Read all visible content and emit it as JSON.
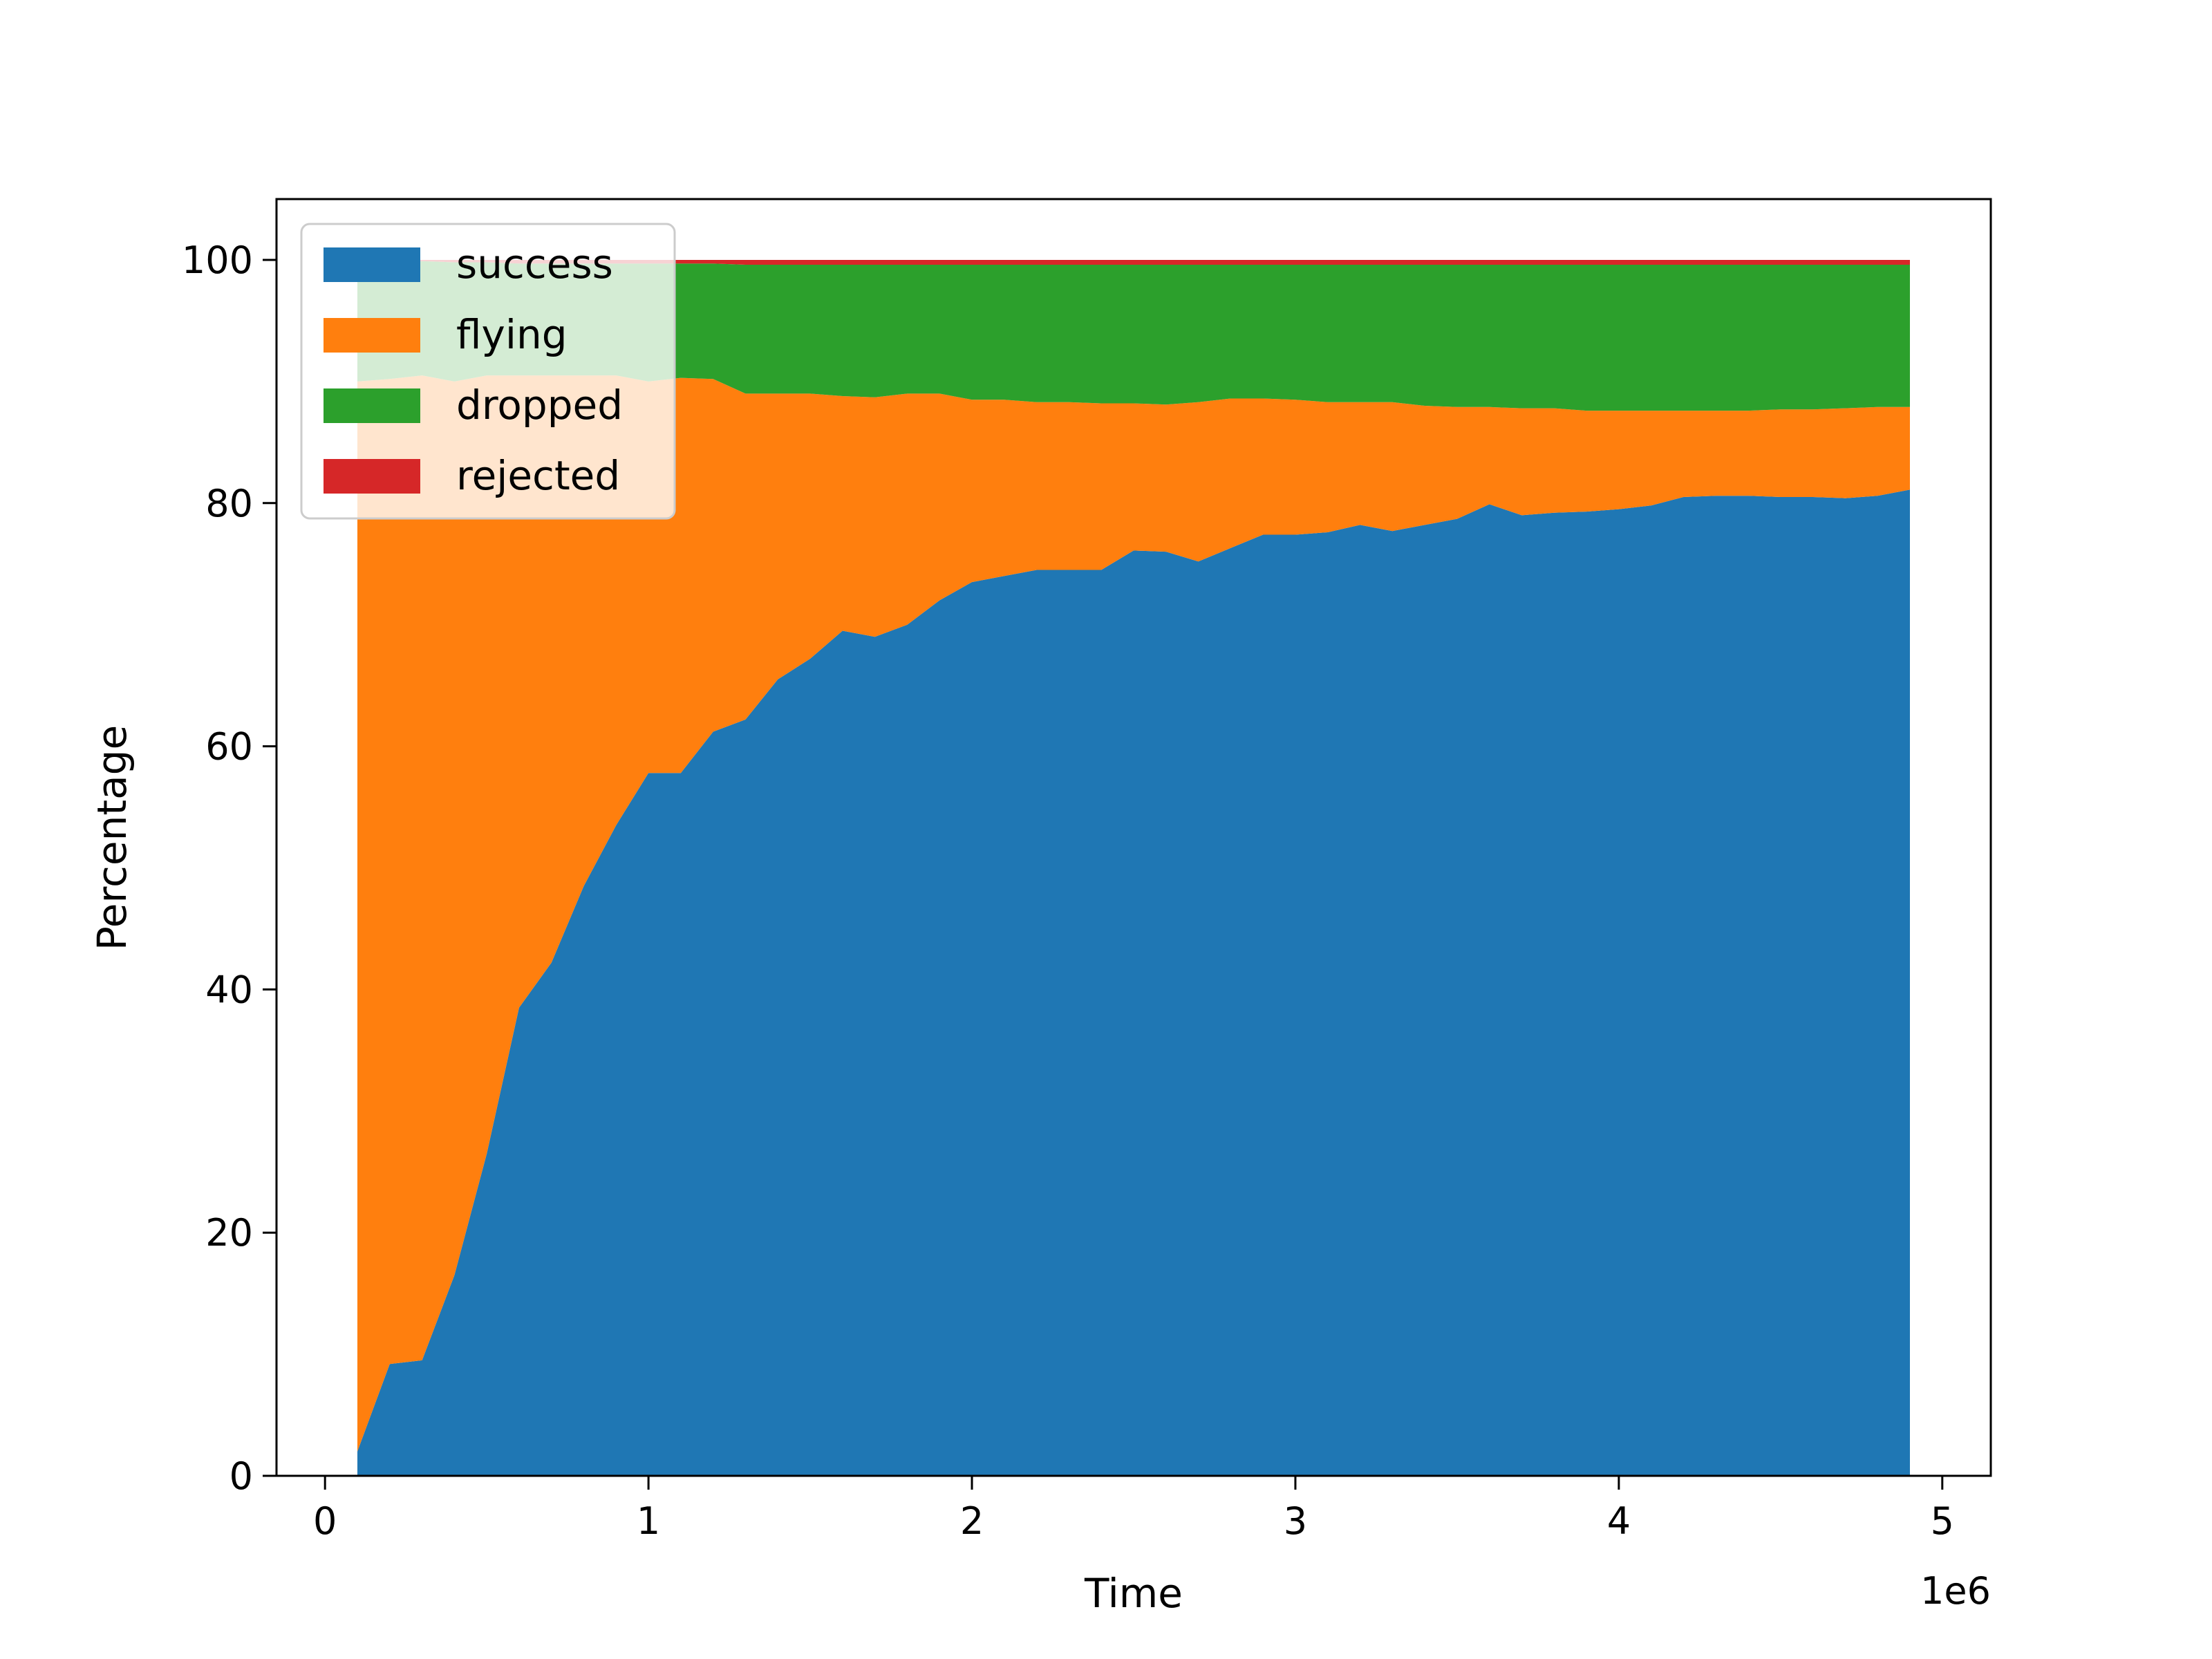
{
  "chart_data": {
    "type": "area",
    "stacked": true,
    "xlabel": "Time",
    "ylabel": "Percentage",
    "x_offset_label": "1e6",
    "xlim": [
      -150000,
      5150000
    ],
    "ylim": [
      0,
      105
    ],
    "xticks": [
      0,
      1,
      2,
      3,
      4,
      5
    ],
    "yticks": [
      0,
      20,
      40,
      60,
      80,
      100
    ],
    "legend_position": "top-left",
    "grid": false,
    "x": [
      100000,
      200000,
      300000,
      400000,
      500000,
      600000,
      700000,
      800000,
      900000,
      1000000,
      1100000,
      1200000,
      1300000,
      1400000,
      1500000,
      1600000,
      1700000,
      1800000,
      1900000,
      2000000,
      2100000,
      2200000,
      2300000,
      2400000,
      2500000,
      2600000,
      2700000,
      2800000,
      2900000,
      3000000,
      3100000,
      3200000,
      3300000,
      3400000,
      3500000,
      3600000,
      3700000,
      3800000,
      3900000,
      4000000,
      4100000,
      4200000,
      4300000,
      4400000,
      4500000,
      4600000,
      4700000,
      4800000,
      4900000
    ],
    "series": [
      {
        "name": "success",
        "color": "#1f77b4",
        "values": [
          2,
          9.2,
          9.5,
          16.5,
          26.5,
          38.5,
          42.2,
          48.5,
          53.5,
          57.8,
          57.8,
          61.2,
          62.2,
          65.5,
          67.2,
          69.5,
          69.0,
          70.0,
          72.0,
          73.5,
          74.0,
          74.5,
          74.5,
          74.5,
          76.1,
          76.0,
          75.2,
          76.3,
          77.4,
          77.4,
          77.6,
          78.2,
          77.7,
          78.2,
          78.7,
          79.9,
          79.0,
          79.2,
          79.3,
          79.5,
          79.8,
          80.5,
          80.6,
          80.6,
          80.5,
          80.5,
          80.4,
          80.6,
          81.1
        ]
      },
      {
        "name": "flying",
        "color": "#ff7f0e",
        "values": [
          88.0,
          81.0,
          81.0,
          73.5,
          64.0,
          52.0,
          48.3,
          42.0,
          37.0,
          32.2,
          32.5,
          29.0,
          26.8,
          23.5,
          21.8,
          19.3,
          19.7,
          19.0,
          17.0,
          15.0,
          14.5,
          13.8,
          13.8,
          13.7,
          12.1,
          12.1,
          13.1,
          12.3,
          11.2,
          11.1,
          10.7,
          10.1,
          10.6,
          9.8,
          9.2,
          8.0,
          8.8,
          8.6,
          8.3,
          8.1,
          7.8,
          7.1,
          7.0,
          7.0,
          7.2,
          7.2,
          7.4,
          7.3,
          6.8
        ]
      },
      {
        "name": "dropped",
        "color": "#2ca02c",
        "values": [
          10.0,
          9.6,
          9.4,
          9.8,
          9.3,
          9.2,
          9.2,
          9.2,
          9.2,
          9.7,
          9.4,
          9.5,
          10.6,
          10.6,
          10.6,
          10.8,
          10.9,
          10.6,
          10.6,
          11.1,
          11.1,
          11.3,
          11.3,
          11.4,
          11.4,
          11.5,
          11.3,
          11.0,
          11.0,
          11.1,
          11.3,
          11.3,
          11.3,
          11.6,
          11.7,
          11.7,
          11.8,
          11.8,
          12.0,
          12.0,
          12.0,
          12.0,
          12.0,
          12.0,
          11.9,
          11.9,
          11.8,
          11.7,
          11.7
        ]
      },
      {
        "name": "rejected",
        "color": "#d62728",
        "values": [
          0.0,
          0.2,
          0.1,
          0.2,
          0.2,
          0.3,
          0.3,
          0.3,
          0.3,
          0.3,
          0.3,
          0.3,
          0.4,
          0.4,
          0.4,
          0.4,
          0.4,
          0.4,
          0.4,
          0.4,
          0.4,
          0.4,
          0.4,
          0.4,
          0.4,
          0.4,
          0.4,
          0.4,
          0.4,
          0.4,
          0.4,
          0.4,
          0.4,
          0.4,
          0.4,
          0.4,
          0.4,
          0.4,
          0.4,
          0.4,
          0.4,
          0.4,
          0.4,
          0.4,
          0.4,
          0.4,
          0.4,
          0.4,
          0.4
        ]
      }
    ]
  }
}
